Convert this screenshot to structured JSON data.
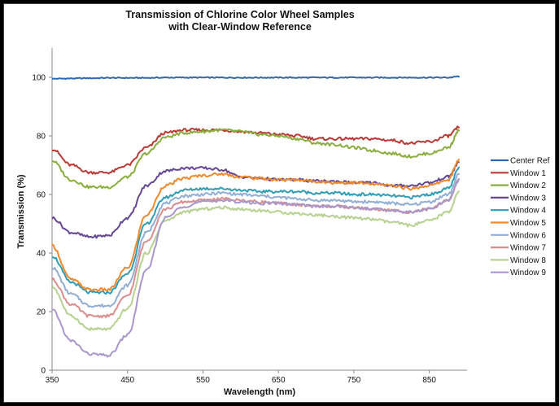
{
  "chart_data": {
    "type": "line",
    "title": "Transmission of Chlorine Color Wheel Samples",
    "subtitle": "with Clear-Window Reference",
    "xlabel": "Wavelength (nm)",
    "ylabel": "Transmission (%)",
    "xlim": [
      350,
      900
    ],
    "ylim": [
      0,
      110
    ],
    "xticks": [
      350,
      450,
      550,
      650,
      750,
      850
    ],
    "yticks": [
      0,
      20,
      40,
      60,
      80,
      100
    ],
    "grid": false,
    "legend_position": "right",
    "x": [
      350,
      375,
      400,
      425,
      450,
      475,
      500,
      525,
      550,
      575,
      600,
      625,
      650,
      675,
      700,
      725,
      750,
      775,
      800,
      825,
      850,
      875,
      890
    ],
    "series": [
      {
        "name": "Center Ref",
        "color": "#2e6ab3",
        "values": [
          99.5,
          99.6,
          99.7,
          99.8,
          99.8,
          99.8,
          99.9,
          99.9,
          99.9,
          99.9,
          99.9,
          99.9,
          99.9,
          99.9,
          99.9,
          99.9,
          99.9,
          99.9,
          99.9,
          99.9,
          99.9,
          99.9,
          100.3
        ]
      },
      {
        "name": "Window 1",
        "color": "#b83a36",
        "values": [
          75.5,
          70,
          67.5,
          67.5,
          70,
          76,
          81,
          82,
          82,
          82,
          81.5,
          81,
          80.5,
          80,
          79,
          79,
          79,
          79,
          78.5,
          77.5,
          78,
          80,
          83
        ]
      },
      {
        "name": "Window 2",
        "color": "#8aad3e",
        "values": [
          71.5,
          65,
          62.5,
          62.5,
          66,
          74,
          79.5,
          81,
          81.5,
          82,
          81.5,
          80.5,
          80,
          79,
          77.5,
          77,
          76,
          75,
          74,
          73,
          74,
          76,
          82
        ]
      },
      {
        "name": "Window 3",
        "color": "#644694",
        "values": [
          52,
          47,
          45.5,
          46,
          52,
          63,
          68,
          69,
          69,
          68.5,
          66,
          65.5,
          65,
          65,
          64.5,
          64.5,
          64,
          64,
          63,
          63,
          64,
          66,
          71
        ]
      },
      {
        "name": "Window 4",
        "color": "#2f9db3",
        "values": [
          39,
          30,
          26.5,
          26.5,
          33,
          50,
          59,
          61.5,
          62,
          62,
          61.5,
          61,
          61,
          61,
          60.5,
          60.5,
          60,
          60,
          59.5,
          59,
          60,
          62,
          69
        ]
      },
      {
        "name": "Window 5",
        "color": "#ef8a2c",
        "values": [
          42.5,
          31,
          27.5,
          27.5,
          35,
          53,
          63,
          65.5,
          66.5,
          67,
          66,
          65.5,
          65,
          65,
          64.5,
          64,
          64,
          63.5,
          63,
          62,
          63,
          65,
          72
        ]
      },
      {
        "name": "Window 6",
        "color": "#91aed4",
        "values": [
          35,
          26,
          22,
          22,
          29,
          47,
          57,
          59.5,
          60,
          60.5,
          60,
          59.5,
          59,
          58.5,
          58,
          58,
          57.5,
          57.5,
          57,
          56.5,
          57.5,
          60,
          67
        ]
      },
      {
        "name": "Window 7",
        "color": "#d98e8d",
        "values": [
          31,
          22.5,
          18.5,
          18.5,
          25.5,
          44,
          55,
          57.5,
          58,
          58.5,
          58,
          57.5,
          57,
          56.5,
          56,
          56,
          55.5,
          55,
          54.5,
          54,
          55,
          58,
          65
        ]
      },
      {
        "name": "Window 8",
        "color": "#b7d190",
        "values": [
          28.5,
          18.5,
          14,
          14,
          21,
          40,
          51,
          54,
          55,
          55.5,
          55,
          54.5,
          54,
          53.5,
          53,
          52.5,
          52,
          51.5,
          50.5,
          49.5,
          51,
          54,
          61
        ]
      },
      {
        "name": "Window 9",
        "color": "#a897cb",
        "values": [
          20.5,
          10,
          5.5,
          5,
          12,
          34,
          52,
          56,
          57.5,
          58,
          57.5,
          57,
          57,
          56.5,
          56,
          56,
          55.5,
          55,
          54.5,
          54,
          55,
          58,
          65
        ]
      }
    ]
  }
}
